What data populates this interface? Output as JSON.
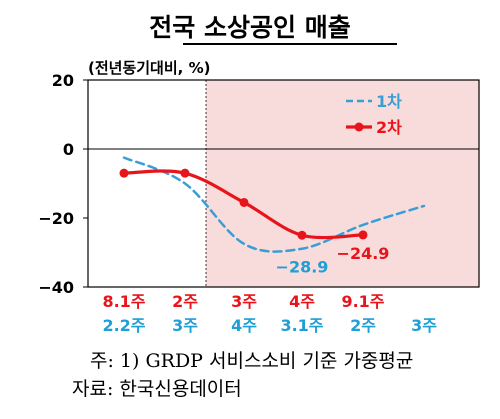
{
  "title": "전국 소상공인 매출",
  "unit_label": "(전년동기대비, %)",
  "chart_data": {
    "type": "line",
    "ylim": [
      -40,
      20
    ],
    "yticks": [
      20,
      0,
      -20,
      -40
    ],
    "ytick_labels": [
      "20",
      "0",
      "−20",
      "−40"
    ],
    "x_axis_rows": [
      {
        "color": "#e8141b",
        "labels": [
          "8.1주",
          "2주",
          "3주",
          "4주",
          "9.1주",
          ""
        ]
      },
      {
        "color": "#1e9fd6",
        "labels": [
          "2.2주",
          "3주",
          "4주",
          "3.1주",
          "2주",
          "3주"
        ]
      }
    ],
    "shaded_region_start": "2주",
    "series": [
      {
        "name": "1차",
        "style": "dashed",
        "color": "#3a9ed6",
        "x": [
          0,
          1,
          2,
          3,
          4,
          5
        ],
        "y": [
          -2.5,
          -10,
          -27.5,
          -28.9,
          -22,
          -16.5
        ],
        "point_label": {
          "index": 3,
          "text": "−28.9",
          "color": "#1e9fd6"
        }
      },
      {
        "name": "2차",
        "style": "solid",
        "color": "#e8141b",
        "x": [
          0,
          1,
          2,
          3,
          4
        ],
        "y": [
          -7,
          -7,
          -15.5,
          -25,
          -24.9
        ],
        "point_label": {
          "index": 4,
          "text": "−24.9",
          "color": "#e8141b"
        }
      }
    ]
  },
  "footnotes": [
    "주: 1) GRDP 서비스소비 기준 가중평균",
    "자료: 한국신용데이터"
  ]
}
